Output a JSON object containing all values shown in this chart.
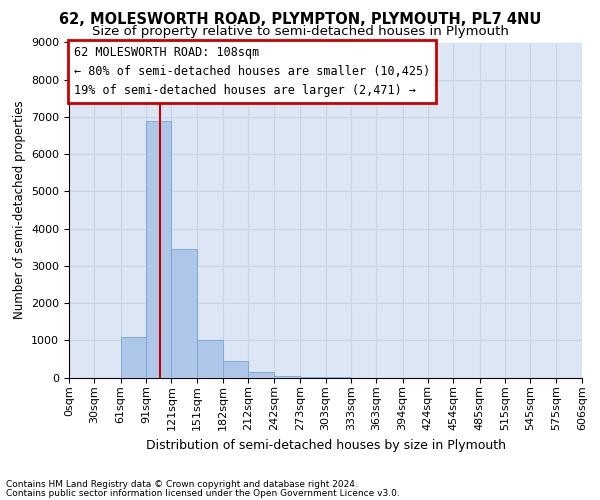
{
  "title": "62, MOLESWORTH ROAD, PLYMPTON, PLYMOUTH, PL7 4NU",
  "subtitle": "Size of property relative to semi-detached houses in Plymouth",
  "xlabel": "Distribution of semi-detached houses by size in Plymouth",
  "ylabel": "Number of semi-detached properties",
  "footnote1": "Contains HM Land Registry data © Crown copyright and database right 2024.",
  "footnote2": "Contains public sector information licensed under the Open Government Licence v3.0.",
  "annotation_line1": "62 MOLESWORTH ROAD: 108sqm",
  "annotation_line2": "← 80% of semi-detached houses are smaller (10,425)",
  "annotation_line3": "19% of semi-detached houses are larger (2,471) →",
  "bins": [
    0,
    30,
    61,
    91,
    121,
    151,
    182,
    212,
    242,
    273,
    303,
    333,
    363,
    394,
    424,
    454,
    485,
    515,
    545,
    575,
    606
  ],
  "counts": [
    0,
    0,
    1100,
    6900,
    3450,
    1000,
    450,
    150,
    50,
    20,
    5,
    0,
    0,
    0,
    0,
    0,
    0,
    0,
    0,
    0
  ],
  "bar_color": "#aec6e8",
  "bar_edge_color": "#6fa8d0",
  "vline_color": "#cc0000",
  "vline_x": 108,
  "box_edge_color": "#cc0000",
  "grid_color": "#c8d4e8",
  "background_color": "#dce6f5",
  "ylim": [
    0,
    9000
  ],
  "yticks": [
    0,
    1000,
    2000,
    3000,
    4000,
    5000,
    6000,
    7000,
    8000,
    9000
  ],
  "title_fontsize": 10.5,
  "subtitle_fontsize": 9.5,
  "xlabel_fontsize": 9,
  "ylabel_fontsize": 8.5,
  "tick_fontsize": 8,
  "annotation_fontsize": 8.5,
  "footnote_fontsize": 6.5
}
